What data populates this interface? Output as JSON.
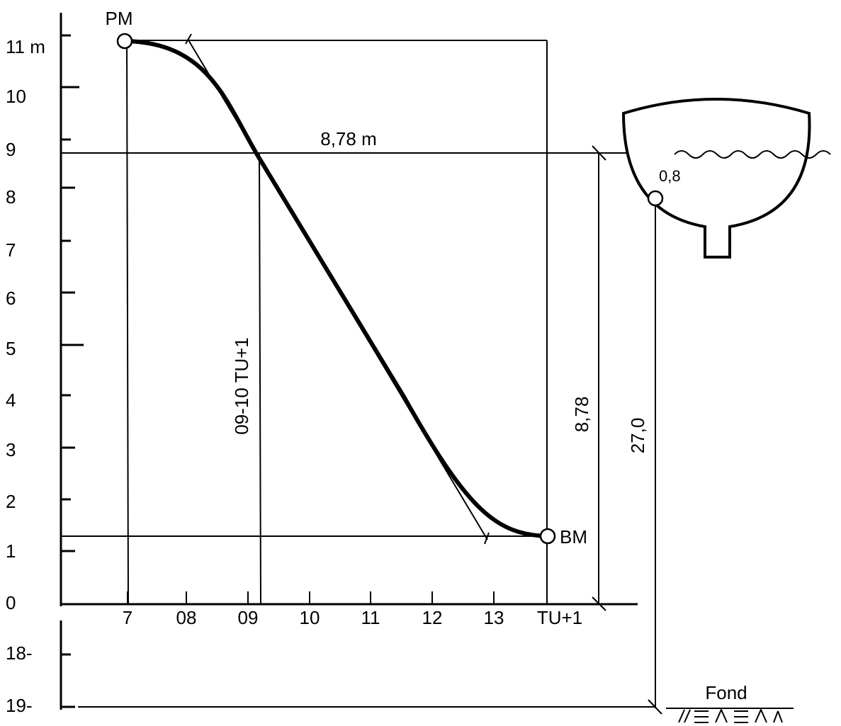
{
  "y_labels": [
    "11 m",
    "10",
    "9",
    "8",
    "7",
    "6",
    "5",
    "4",
    "3",
    "2",
    "1",
    "0",
    "18-",
    "19-"
  ],
  "x_labels": [
    "7",
    "08",
    "09",
    "10",
    "11",
    "12",
    "13",
    "TU+1"
  ],
  "points": {
    "high": "PM",
    "low": "BM"
  },
  "annotations": {
    "height_m": "8,78 m",
    "time": "09-10 TU+1",
    "height": "8,78",
    "depth": "27,0",
    "draft": "0,8",
    "bottom": "Fond"
  }
}
